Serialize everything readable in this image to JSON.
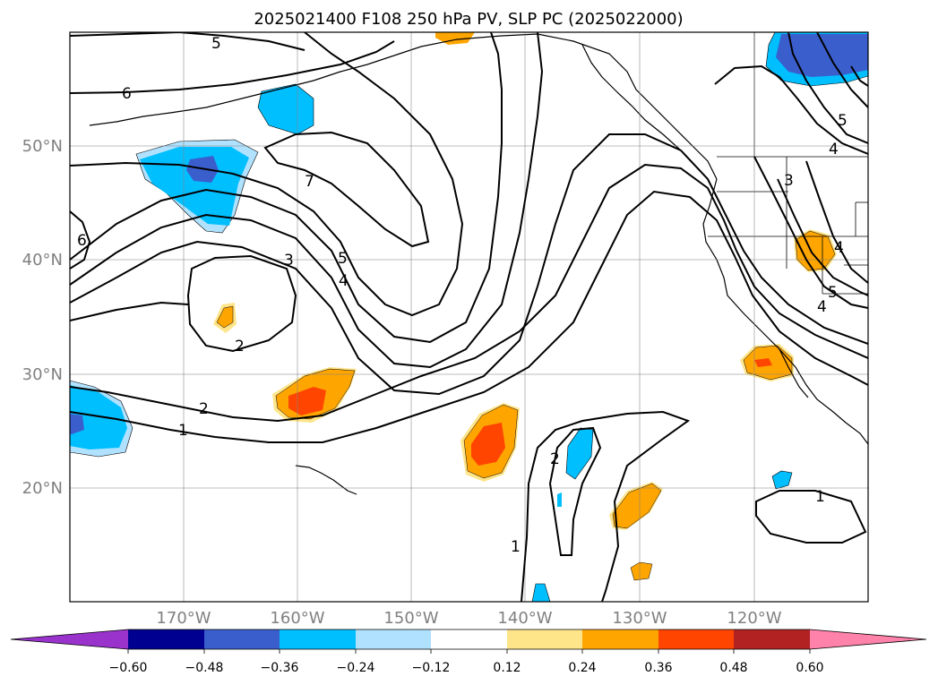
{
  "title": "2025021400 F108 250 hPa PV, SLP PC (2025022000)",
  "lat_labels": [
    "50°N",
    "40°N",
    "30°N",
    "20°N"
  ],
  "lon_labels": [
    "170°W",
    "160°W",
    "150°W",
    "140°W",
    "130°W",
    "120°W"
  ],
  "colorbar": {
    "ticks": [
      "−0.60",
      "−0.48",
      "−0.36",
      "−0.24",
      "−0.12",
      "0.12",
      "0.24",
      "0.36",
      "0.48",
      "0.60"
    ],
    "colors": {
      "under": "#9933cc",
      "b1": "#000090",
      "b2": "#3a5fcd",
      "b3": "#00bfff",
      "b4": "#b0e2ff",
      "b5": "#ffffff",
      "b6": "#ffe58a",
      "b7": "#ffa500",
      "b8": "#ff4500",
      "b9": "#b22222",
      "over": "#ff82ab"
    }
  },
  "contour_labels": [
    "5",
    "6",
    "7",
    "6",
    "3",
    "5",
    "4",
    "2",
    "2",
    "1",
    "5",
    "4",
    "3",
    "4",
    "5",
    "4",
    "2",
    "1",
    "1"
  ]
}
